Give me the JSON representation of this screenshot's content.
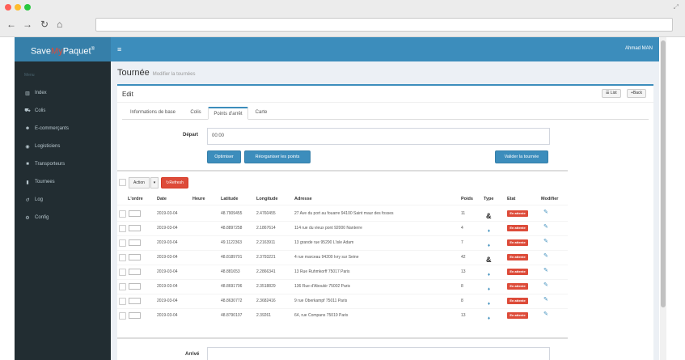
{
  "app": {
    "logo_prefix": "Save",
    "logo_accent": "My",
    "logo_suffix": "Paquet",
    "logo_reg": "®",
    "user_name": "Ahmad MAN"
  },
  "sidebar": {
    "header": "Menu",
    "items": [
      {
        "label": "Index",
        "icon": "bar-chart-icon"
      },
      {
        "label": "Colis",
        "icon": "cart-icon"
      },
      {
        "label": "E-commerçants",
        "icon": "users-icon"
      },
      {
        "label": "Logisticiens",
        "icon": "truck-icon"
      },
      {
        "label": "Transporteurs",
        "icon": "car-icon"
      },
      {
        "label": "Tournees",
        "icon": "book-icon"
      },
      {
        "label": "Log",
        "icon": "history-icon"
      },
      {
        "label": "Config",
        "icon": "cogs-icon"
      }
    ]
  },
  "page": {
    "title": "Tournée",
    "subtitle": "Modifier la tournées"
  },
  "box": {
    "title": "Edit",
    "list_btn": "List",
    "back_btn": "Back"
  },
  "tabs": [
    "Informations de base",
    "Colis",
    "Points d'arrêt",
    "Carte"
  ],
  "form": {
    "depart_label": "Départ",
    "depart_value": "00:00",
    "optimiser_btn": "Optimiser",
    "reorganiser_btn": "Réorganiser les points",
    "valider_btn": "Valider la tournée",
    "arrive_label": "Arrivé",
    "arrive_value": ""
  },
  "toolbar": {
    "action_label": "Action",
    "refresh_label": "Refresh"
  },
  "table": {
    "headers": [
      "L'ordre",
      "Date",
      "Heure",
      "Latitude",
      "Longitude",
      "Adresse",
      "Poids",
      "Type",
      "Etat",
      "Modifier"
    ],
    "rows": [
      {
        "date": "2019-03-04",
        "heure": "",
        "lat": "48.7909455",
        "lng": "2.4760455",
        "adresse": "27 Ave du port au fouarre 94100 Saint maur des fosses",
        "poids": "11",
        "type": "ampersand",
        "etat": "En attente"
      },
      {
        "date": "2019-03-04",
        "heure": "",
        "lat": "48.8897258",
        "lng": "2.1867614",
        "adresse": "114 rue du vieux pont 92000 Nanterre",
        "poids": "4",
        "type": "pin",
        "etat": "En attente"
      },
      {
        "date": "2019-03-04",
        "heure": "",
        "lat": "49.1122363",
        "lng": "2.2163911",
        "adresse": "13 grande rue 95290 L'isle Adam",
        "poids": "7",
        "type": "pin",
        "etat": "En attente"
      },
      {
        "date": "2019-03-04",
        "heure": "",
        "lat": "48.8189701",
        "lng": "2.3793221",
        "adresse": "4 rue marceau 94200 Ivry sur Seine",
        "poids": "42",
        "type": "ampersand",
        "etat": "En attente"
      },
      {
        "date": "2019-03-04",
        "heure": "",
        "lat": "48.881653",
        "lng": "2.2866341",
        "adresse": "13 Rue Ruhmkorff 75017 Paris",
        "poids": "13",
        "type": "pin",
        "etat": "En attente"
      },
      {
        "date": "2019-03-04",
        "heure": "",
        "lat": "48.8691706",
        "lng": "2.3518829",
        "adresse": "136 Rue d'Aboukir 75002 Paris",
        "poids": "8",
        "type": "pin",
        "etat": "En attente"
      },
      {
        "date": "2019-03-04",
        "heure": "",
        "lat": "48.8630772",
        "lng": "2.3682416",
        "adresse": "9 rue Oberkampf 75011 Paris",
        "poids": "8",
        "type": "pin",
        "etat": "En attente"
      },
      {
        "date": "2019-03-04",
        "heure": "",
        "lat": "48.8790107",
        "lng": "2.39261",
        "adresse": "64, rue Compans 75019 Paris",
        "poids": "13",
        "type": "pin",
        "etat": "En attente"
      }
    ]
  },
  "colors": {
    "primary": "#3c8dbc",
    "sidebar": "#222d32",
    "danger": "#dd4b39"
  }
}
